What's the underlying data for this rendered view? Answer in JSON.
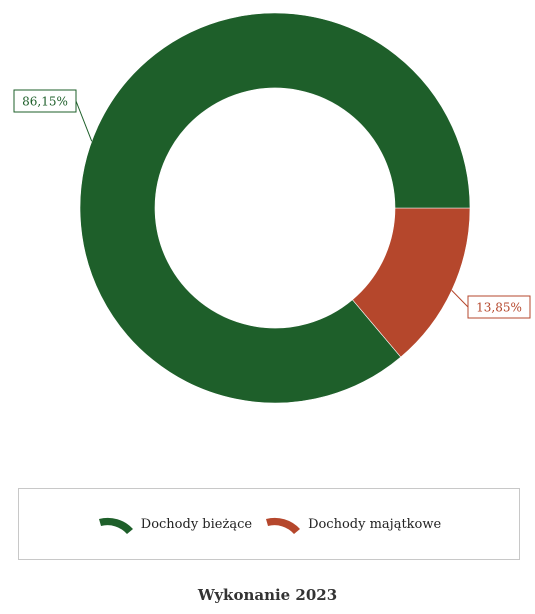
{
  "chart_data": {
    "type": "pie",
    "subtype": "donut",
    "title": "",
    "series": [
      {
        "name": "Dochody bieżące",
        "value": 86.15,
        "label": "86,15%",
        "color": "#1e5f2a"
      },
      {
        "name": "Dochody majątkowe",
        "value": 13.85,
        "label": "13,85%",
        "color": "#b5472c"
      }
    ],
    "legend_position": "bottom"
  },
  "caption": "Wykonanie 2023"
}
